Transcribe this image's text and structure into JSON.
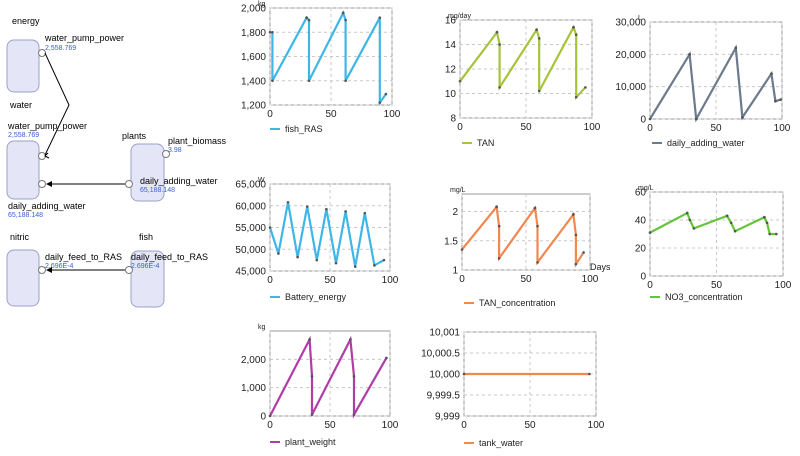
{
  "diagram": {
    "groups": [
      {
        "name": "energy"
      },
      {
        "name": "water"
      },
      {
        "name": "plants"
      },
      {
        "name": "nitric"
      },
      {
        "name": "fish"
      }
    ],
    "ports": [
      {
        "label": "water_pump_power",
        "value": "2,558.769"
      },
      {
        "label": "water_pump_power",
        "value": "2,558.769"
      },
      {
        "label": "plant_biomass",
        "value": "3.98"
      },
      {
        "label": "daily_adding_water",
        "value": "65,188.148"
      },
      {
        "label": "daily_adding_water",
        "value": "65,188.148"
      },
      {
        "label": "daily_feed_to_RAS",
        "value": "2.696E-4"
      },
      {
        "label": "daily_feed_to_RAS",
        "value": "2.696E-4"
      }
    ],
    "colors": {
      "box_fill": "#e4e6f8",
      "box_border": "#9aa0c8",
      "value_text": "#3a5cd8"
    }
  },
  "chart_data": [
    {
      "type": "line",
      "unit": "kg",
      "legend": "fish_RAS",
      "color": "#3fb6e8",
      "xlim": [
        0,
        100
      ],
      "xticks": [
        0,
        50,
        100
      ],
      "ylim": [
        1200,
        2000
      ],
      "yticks": [
        1200,
        1400,
        1600,
        1800,
        2000
      ],
      "yticklabels": [
        "1,200",
        "1,400",
        "1,600",
        "1,800",
        "2,000"
      ],
      "x": [
        0,
        2,
        2,
        30,
        30,
        32,
        32,
        60,
        60,
        62,
        62,
        90,
        90,
        95
      ],
      "y": [
        1800,
        1800,
        1400,
        1920,
        1920,
        1900,
        1400,
        1960,
        1960,
        1900,
        1400,
        1920,
        1220,
        1290
      ]
    },
    {
      "type": "line",
      "unit": "mg/day",
      "legend": "TAN",
      "color": "#a6c43a",
      "xlim": [
        0,
        100
      ],
      "xticks": [
        0,
        50,
        100
      ],
      "ylim": [
        8,
        16
      ],
      "yticks": [
        8,
        10,
        12,
        14,
        16
      ],
      "yticklabels": [
        "8",
        "10",
        "12",
        "14",
        "16"
      ],
      "x": [
        0,
        28,
        28,
        30,
        30,
        58,
        58,
        60,
        60,
        86,
        86,
        88,
        88,
        95
      ],
      "y": [
        11,
        15,
        15,
        14,
        10.5,
        15.2,
        15.2,
        14.5,
        10.2,
        15.4,
        15.4,
        14.8,
        9.7,
        10.5
      ]
    },
    {
      "type": "line",
      "unit": "L",
      "legend": "daily_adding_water",
      "color": "#6d7a8c",
      "xlim": [
        0,
        100
      ],
      "xticks": [
        0,
        50,
        100
      ],
      "ylim": [
        0,
        30000
      ],
      "yticks": [
        0,
        10000,
        20000,
        30000
      ],
      "yticklabels": [
        "0",
        "10,000",
        "20,000",
        "30,000"
      ],
      "x": [
        0,
        30,
        30,
        35,
        35,
        65,
        65,
        70,
        70,
        92,
        92,
        95,
        95,
        99
      ],
      "y": [
        0,
        20000,
        20000,
        0,
        0,
        22000,
        22000,
        500,
        500,
        14000,
        14000,
        5500,
        5500,
        6000
      ]
    },
    {
      "type": "line",
      "unit": "W",
      "legend": "Battery_energy",
      "color": "#3fb6e8",
      "xlim": [
        0,
        100
      ],
      "xticks": [
        0,
        50,
        100
      ],
      "ylim": [
        45000,
        65000
      ],
      "yticks": [
        45000,
        50000,
        55000,
        60000,
        65000
      ],
      "yticklabels": [
        "45,000",
        "50,000",
        "55,000",
        "60,000",
        "65,000"
      ],
      "x": [
        0,
        7,
        15,
        23,
        31,
        39,
        47,
        55,
        63,
        71,
        79,
        87,
        95
      ],
      "y": [
        55000,
        49000,
        60800,
        48200,
        59800,
        47500,
        59200,
        46800,
        58700,
        46000,
        58300,
        46300,
        47500
      ]
    },
    {
      "type": "line",
      "unit": "mg/L",
      "legend": "TAN_concentration",
      "color": "#f08850",
      "xlabel": "Days",
      "xlim": [
        0,
        100
      ],
      "xticks": [
        0,
        50,
        100
      ],
      "ylim": [
        1,
        2.3
      ],
      "yticks": [
        1,
        1.5,
        2
      ],
      "yticklabels": [
        "1",
        "1.5",
        "2"
      ],
      "x": [
        0,
        27,
        27,
        29,
        29,
        57,
        57,
        59,
        59,
        87,
        87,
        89,
        89,
        95
      ],
      "y": [
        1.35,
        2.08,
        2.08,
        1.75,
        1.2,
        2.06,
        2.06,
        1.75,
        1.13,
        1.95,
        1.95,
        1.6,
        1.1,
        1.3
      ]
    },
    {
      "type": "line",
      "unit": "mg/L",
      "legend": "NO3_concentration",
      "color": "#66c43a",
      "xlim": [
        0,
        100
      ],
      "xticks": [
        0,
        50,
        100
      ],
      "ylim": [
        0,
        60
      ],
      "yticks": [
        0,
        20,
        40,
        60
      ],
      "yticklabels": [
        "0",
        "20",
        "40",
        "60"
      ],
      "x": [
        0,
        28,
        28,
        30,
        33,
        58,
        58,
        61,
        64,
        86,
        86,
        88,
        90,
        95
      ],
      "y": [
        31,
        45,
        45,
        40,
        34,
        43,
        43,
        38,
        32,
        42,
        42,
        38,
        30,
        30
      ]
    },
    {
      "type": "line",
      "unit": "kg",
      "legend": "plant_weight",
      "color": "#b03ca8",
      "xlim": [
        0,
        100
      ],
      "xticks": [
        0,
        50,
        100
      ],
      "ylim": [
        0,
        3000
      ],
      "yticks": [
        0,
        1000,
        2000
      ],
      "yticklabels": [
        "0",
        "1,000",
        "2,000"
      ],
      "x": [
        0,
        33,
        33,
        35,
        35,
        67,
        67,
        70,
        70,
        97
      ],
      "y": [
        0,
        2700,
        2700,
        1400,
        50,
        2700,
        2700,
        1400,
        50,
        2050
      ]
    },
    {
      "type": "line",
      "legend": "tank_water",
      "color": "#f08850",
      "xlim": [
        0,
        100
      ],
      "xticks": [
        0,
        50,
        100
      ],
      "ylim": [
        9999,
        10001
      ],
      "yticks": [
        9999,
        9999.5,
        10000,
        10000.5,
        10001
      ],
      "yticklabels": [
        "9,999",
        "9,999.5",
        "10,000",
        "10,000.5",
        "10,001"
      ],
      "x": [
        0,
        95
      ],
      "y": [
        10000,
        10000
      ]
    }
  ]
}
